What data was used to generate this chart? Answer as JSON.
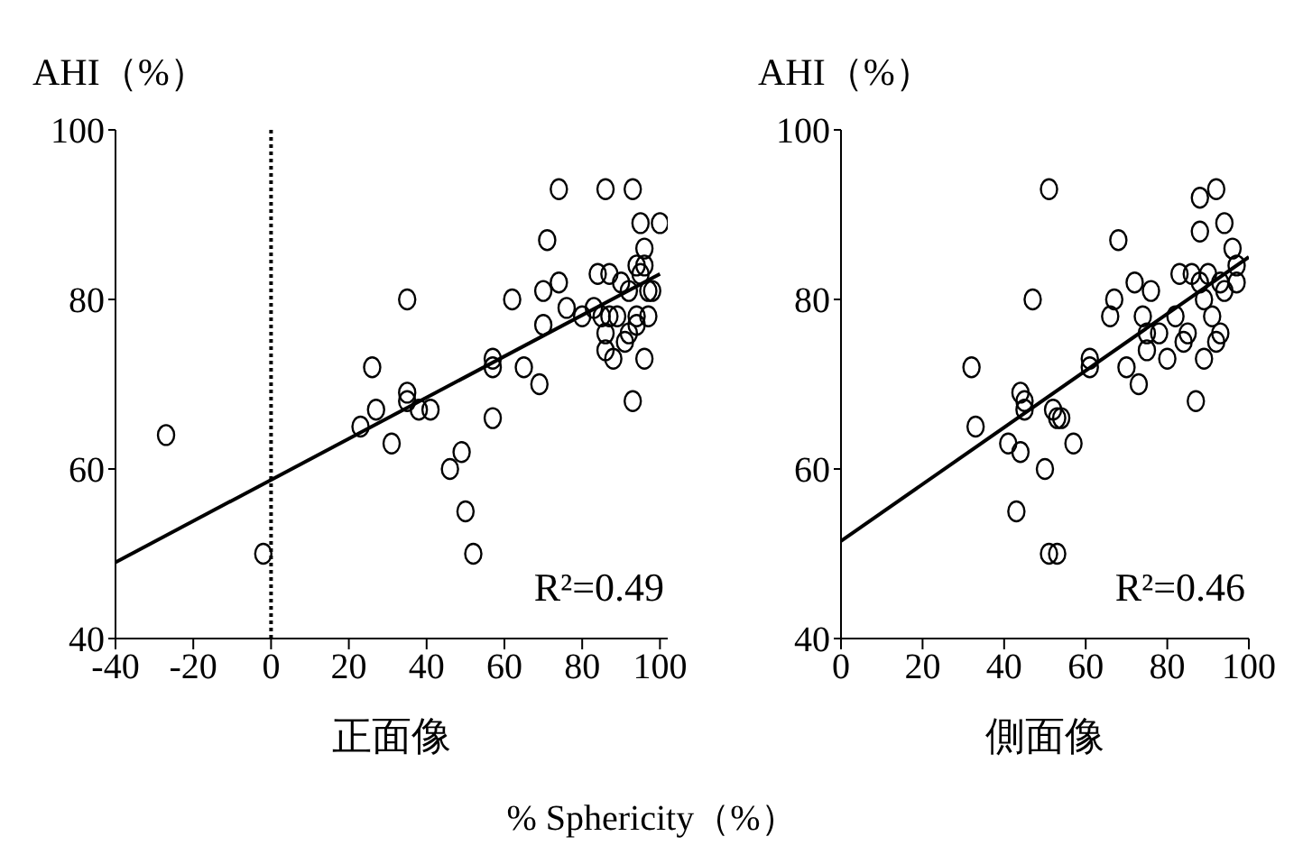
{
  "chart_data": [
    {
      "type": "scatter",
      "xlabel": "正面像",
      "ylabel": "AHI（%）",
      "xlim": [
        -40,
        102
      ],
      "xticks": [
        -40,
        -20,
        0,
        20,
        40,
        60,
        80,
        100
      ],
      "ylim": [
        40,
        100
      ],
      "yticks": [
        40,
        60,
        80,
        100
      ],
      "marker": "circle",
      "ref_lines": [
        {
          "axis": "x",
          "value": 0,
          "line_style": "dotted",
          "color": "#000000"
        }
      ],
      "annotations": [
        "R²=0.49",
        "% Sphericity（%）"
      ],
      "series": [
        {
          "color": "#000000",
          "x": [
            -27,
            -2,
            23,
            26,
            27,
            31,
            35,
            35,
            35,
            38,
            41,
            46,
            49,
            50,
            52,
            57,
            57,
            57,
            62,
            65,
            69,
            70,
            70,
            71,
            74,
            74,
            76,
            80,
            86,
            93,
            95,
            100,
            96,
            93,
            96,
            84,
            87,
            83,
            85,
            86,
            86,
            88,
            87,
            90,
            92,
            94,
            95,
            97,
            97,
            98,
            92,
            94,
            91,
            94,
            96,
            89
          ],
          "values": [
            64,
            50,
            65,
            72,
            67,
            63,
            80,
            68,
            69,
            67,
            67,
            60,
            62,
            55,
            50,
            73,
            72,
            66,
            80,
            72,
            70,
            81,
            77,
            87,
            93,
            82,
            79,
            78,
            93,
            93,
            89,
            89,
            86,
            68,
            73,
            83,
            83,
            79,
            78,
            76,
            74,
            73,
            78,
            82,
            81,
            84,
            83,
            81,
            78,
            81,
            76,
            77,
            75,
            78,
            84,
            78
          ]
        },
        {
          "type": "line",
          "marker": "none",
          "color": "#000000",
          "x": [
            -40,
            100
          ],
          "values": [
            49,
            83
          ]
        }
      ]
    },
    {
      "type": "scatter",
      "xlabel": "側面像",
      "ylabel": "AHI（%）",
      "xlim": [
        0,
        100
      ],
      "xticks": [
        0,
        20,
        40,
        60,
        80,
        100
      ],
      "ylim": [
        40,
        100
      ],
      "yticks": [
        40,
        60,
        80,
        100
      ],
      "marker": "circle",
      "annotations": [
        "R²=0.46"
      ],
      "series": [
        {
          "color": "#000000",
          "x": [
            32,
            33,
            51,
            47,
            44,
            45,
            45,
            41,
            44,
            50,
            43,
            51,
            53,
            52,
            53,
            54,
            57,
            61,
            61,
            68,
            66,
            67,
            70,
            73,
            72,
            74,
            75,
            76,
            75,
            78,
            80,
            82,
            84,
            83,
            85,
            86,
            87,
            88,
            92,
            88,
            89,
            94,
            96,
            97,
            97,
            89,
            91,
            93,
            92,
            88,
            90,
            93,
            94
          ],
          "values": [
            72,
            65,
            93,
            80,
            69,
            68,
            67,
            63,
            62,
            60,
            55,
            50,
            50,
            67,
            66,
            66,
            63,
            72,
            73,
            87,
            78,
            80,
            72,
            70,
            82,
            78,
            76,
            81,
            74,
            76,
            73,
            78,
            75,
            83,
            76,
            83,
            68,
            92,
            93,
            88,
            73,
            89,
            86,
            84,
            82,
            80,
            78,
            76,
            75,
            82,
            83,
            82,
            81
          ]
        },
        {
          "type": "line",
          "marker": "none",
          "color": "#000000",
          "x": [
            0,
            100
          ],
          "values": [
            51.5,
            85
          ]
        }
      ]
    }
  ]
}
